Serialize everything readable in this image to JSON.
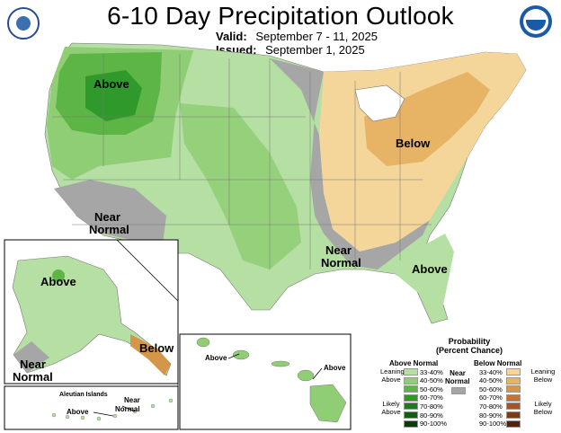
{
  "header": {
    "title": "6-10 Day Precipitation Outlook",
    "valid_label": "Valid:",
    "valid_dates": "September 7 - 11, 2025",
    "issued_label": "Issued:",
    "issued_date": "September 1, 2025"
  },
  "logos": {
    "left": "doc-seal-icon",
    "right": "noaa-logo-icon"
  },
  "map_labels": {
    "above_nw": "Above",
    "near_normal_sw_1": "Near",
    "near_normal_sw_2": "Normal",
    "below_ne": "Below",
    "near_normal_se_1": "Near",
    "near_normal_se_2": "Normal",
    "above_se": "Above",
    "alaska_above": "Above",
    "alaska_below": "Below",
    "alaska_near_1": "Near",
    "alaska_near_2": "Normal",
    "hawaii_above_w": "Above",
    "hawaii_above_e": "Above",
    "aleutian_title": "Aleutian Islands",
    "aleutian_above": "Above",
    "aleutian_near_1": "Near",
    "aleutian_near_2": "Normal"
  },
  "legend": {
    "title_1": "Probability",
    "title_2": "(Percent Chance)",
    "above_header": "Above Normal",
    "near_header_1": "Near",
    "near_header_2": "Normal",
    "below_header": "Below Normal",
    "above_ranges": [
      "33-40%",
      "40-50%",
      "50-60%",
      "60-70%",
      "70-80%",
      "80-90%",
      "90-100%"
    ],
    "below_ranges": [
      "33-40%",
      "40-50%",
      "50-60%",
      "60-70%",
      "70-80%",
      "80-90%",
      "90-100%"
    ],
    "above_colors": [
      "#b5dfa3",
      "#8fce74",
      "#5cb544",
      "#2f9a2b",
      "#1f7a1f",
      "#145c14",
      "#0a3d0a"
    ],
    "below_colors": [
      "#f4d59a",
      "#e6b464",
      "#d5964a",
      "#c2733a",
      "#a55528",
      "#7d3a18",
      "#55230c"
    ],
    "near_color": "#a6a6a6",
    "leaning_above_1": "Leaning",
    "leaning_above_2": "Above",
    "likely_above_1": "Likely",
    "likely_above_2": "Above",
    "leaning_below_1": "Leaning",
    "leaning_below_2": "Below",
    "likely_below_1": "Likely",
    "likely_below_2": "Below"
  }
}
